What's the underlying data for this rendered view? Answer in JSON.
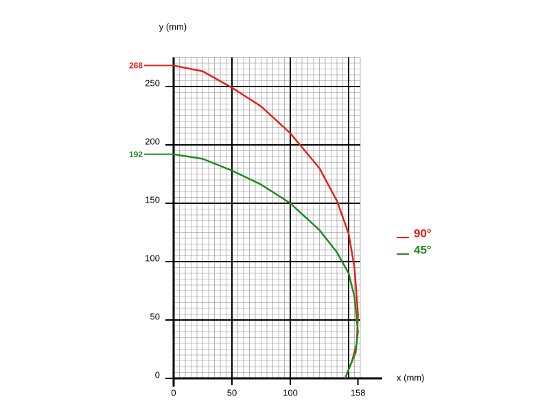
{
  "chart_data": {
    "type": "line",
    "xlabel": "x (mm)",
    "ylabel": "y (mm)",
    "xlim": [
      0,
      160
    ],
    "ylim": [
      0,
      275
    ],
    "xticks": [
      0,
      50,
      100,
      158
    ],
    "yticks": [
      0,
      50,
      100,
      150,
      200,
      250
    ],
    "grid_step": 50,
    "minor_grid_step": 5,
    "legend": "right",
    "series": [
      {
        "name": "90°",
        "color": "#e8201a",
        "x": [
          0,
          25,
          50,
          75,
          100,
          125,
          140,
          150,
          155,
          158,
          157,
          153,
          147
        ],
        "values": [
          268,
          263,
          249,
          233,
          210,
          180,
          152,
          124,
          95,
          55,
          30,
          15,
          0
        ]
      },
      {
        "name": "45°",
        "color": "#1e8a1e",
        "x": [
          0,
          25,
          50,
          75,
          100,
          125,
          140,
          150,
          155,
          158,
          156,
          151,
          147
        ],
        "values": [
          192,
          188,
          178,
          166,
          150,
          127,
          108,
          90,
          70,
          40,
          22,
          10,
          0
        ]
      }
    ],
    "annotations": [
      {
        "label": "268",
        "value": 268,
        "series": 0
      },
      {
        "label": "192",
        "value": 192,
        "series": 1
      }
    ]
  }
}
